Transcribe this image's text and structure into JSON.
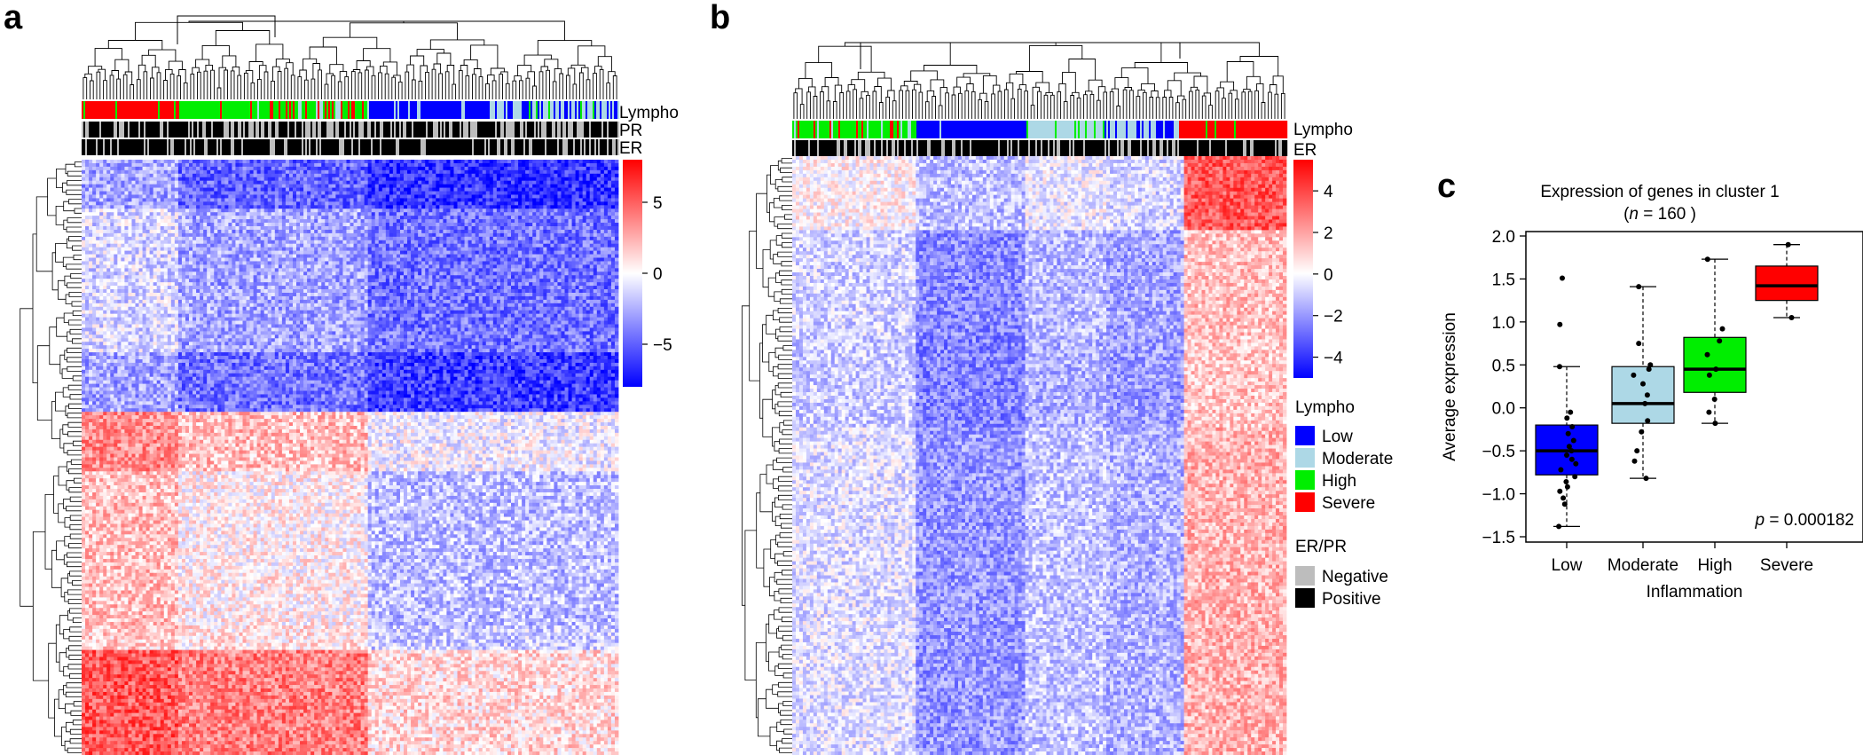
{
  "panels": {
    "a": "a",
    "b": "b",
    "c": "c"
  },
  "colors": {
    "low": "#0000ff",
    "moderate": "#add8e6",
    "high": "#00ee00",
    "severe": "#ff0000",
    "negative": "#bdbdbd",
    "positive": "#000000"
  },
  "heatmap_a": {
    "track_labels": [
      "Lympho",
      "PR",
      "ER"
    ],
    "colorbar": {
      "ticks": [
        5,
        0,
        -5
      ],
      "tick_labels": [
        "5",
        "0",
        "−5"
      ],
      "range": [
        -8,
        8
      ]
    }
  },
  "heatmap_b": {
    "track_labels": [
      "Lympho",
      "ER"
    ],
    "colorbar": {
      "ticks": [
        4,
        2,
        0,
        -2,
        -4
      ],
      "tick_labels": [
        "4",
        "2",
        "0",
        "−2",
        "−4"
      ],
      "range": [
        -5,
        5.5
      ]
    }
  },
  "legend": {
    "lympho_title": "Lympho",
    "lympho_items": [
      {
        "label": "Low",
        "color": "#0000ff"
      },
      {
        "label": "Moderate",
        "color": "#add8e6"
      },
      {
        "label": "High",
        "color": "#00ee00"
      },
      {
        "label": "Severe",
        "color": "#ff0000"
      }
    ],
    "erpr_title": "ER/PR",
    "erpr_items": [
      {
        "label": "Negative",
        "color": "#bdbdbd"
      },
      {
        "label": "Positive",
        "color": "#000000"
      }
    ]
  },
  "chart_data": {
    "type": "box",
    "title_line1": "Expression of genes in cluster 1",
    "title_n_open": "(",
    "title_n_var": "n",
    "title_n_eq": " = 160 )",
    "xlabel": "Inflammation",
    "ylabel": "Average expression",
    "categories": [
      "Low",
      "Moderate",
      "High",
      "Severe"
    ],
    "box_colors": [
      "#0000ff",
      "#add8e6",
      "#00ee00",
      "#ff0000"
    ],
    "ylim": [
      -1.5,
      2.0
    ],
    "yticks": [
      -1.5,
      -1.0,
      -0.5,
      0.0,
      0.5,
      1.0,
      1.5,
      2.0
    ],
    "ytick_labels": [
      "−1.5",
      "−1.0",
      "−0.5",
      "0.0",
      "0.5",
      "1.0",
      "1.5",
      "2.0"
    ],
    "boxes": [
      {
        "whisker_low": -1.38,
        "q1": -0.78,
        "median": -0.5,
        "q3": -0.2,
        "whisker_high": 0.48
      },
      {
        "whisker_low": -0.82,
        "q1": -0.18,
        "median": 0.05,
        "q3": 0.48,
        "whisker_high": 1.41
      },
      {
        "whisker_low": -0.18,
        "q1": 0.18,
        "median": 0.45,
        "q3": 0.82,
        "whisker_high": 1.73
      },
      {
        "whisker_low": 1.05,
        "q1": 1.25,
        "median": 1.42,
        "q3": 1.65,
        "whisker_high": 1.9
      }
    ],
    "points": [
      [
        1.51,
        0.97,
        0.48,
        -0.05,
        -0.12,
        -0.22,
        -0.3,
        -0.38,
        -0.45,
        -0.5,
        -0.55,
        -0.6,
        -0.65,
        -0.72,
        -0.8,
        -0.86,
        -0.92,
        -0.97,
        -1.05,
        -1.12,
        -1.38
      ],
      [
        1.41,
        0.75,
        0.5,
        0.45,
        0.38,
        0.28,
        0.15,
        0.05,
        -0.15,
        -0.28,
        -0.5,
        -0.62,
        -0.82
      ],
      [
        1.73,
        0.92,
        0.78,
        0.62,
        0.45,
        0.38,
        0.1,
        -0.05,
        -0.18
      ],
      [
        1.9,
        1.05
      ]
    ],
    "pvalue_var": "p",
    "pvalue_rest": " = 0.000182"
  }
}
